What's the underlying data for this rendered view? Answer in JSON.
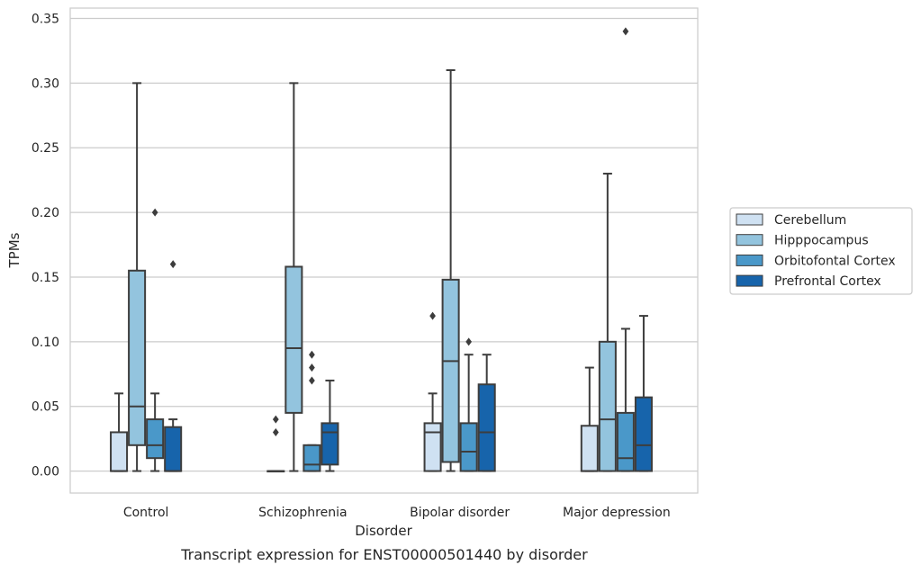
{
  "chart_data": {
    "type": "box",
    "title": "Transcript expression for ENST00000501440 by disorder",
    "xlabel": "Disorder",
    "ylabel": "TPMs",
    "ylim": [
      -0.017,
      0.358
    ],
    "yticks": [
      "0.00",
      "0.05",
      "0.10",
      "0.15",
      "0.20",
      "0.25",
      "0.30",
      "0.35"
    ],
    "categories": [
      "Control",
      "Schizophrenia",
      "Bipolar disorder",
      "Major depression"
    ],
    "legend_position": "right",
    "grid": true,
    "series": [
      {
        "name": "Cerebellum",
        "color": "#cfe1f2",
        "boxes": [
          {
            "whislo": 0.0,
            "q1": 0.0,
            "med": 0.0,
            "q3": 0.03,
            "whishi": 0.06,
            "fliers": []
          },
          {
            "whislo": 0.0,
            "q1": 0.0,
            "med": 0.0,
            "q3": 0.0,
            "whishi": 0.0,
            "fliers": [
              0.04,
              0.03
            ]
          },
          {
            "whislo": 0.0,
            "q1": 0.0,
            "med": 0.03,
            "q3": 0.037,
            "whishi": 0.06,
            "fliers": [
              0.12
            ]
          },
          {
            "whislo": 0.0,
            "q1": 0.0,
            "med": 0.0,
            "q3": 0.035,
            "whishi": 0.08,
            "fliers": []
          }
        ]
      },
      {
        "name": "Hipppocampus",
        "color": "#93c4de",
        "boxes": [
          {
            "whislo": 0.0,
            "q1": 0.02,
            "med": 0.05,
            "q3": 0.155,
            "whishi": 0.3,
            "fliers": []
          },
          {
            "whislo": 0.0,
            "q1": 0.045,
            "med": 0.095,
            "q3": 0.158,
            "whishi": 0.3,
            "fliers": []
          },
          {
            "whislo": 0.0,
            "q1": 0.007,
            "med": 0.085,
            "q3": 0.148,
            "whishi": 0.31,
            "fliers": []
          },
          {
            "whislo": 0.0,
            "q1": 0.0,
            "med": 0.04,
            "q3": 0.1,
            "whishi": 0.23,
            "fliers": []
          }
        ]
      },
      {
        "name": "Orbitofontal Cortex",
        "color": "#4a98c9",
        "boxes": [
          {
            "whislo": 0.0,
            "q1": 0.01,
            "med": 0.02,
            "q3": 0.04,
            "whishi": 0.06,
            "fliers": [
              0.2
            ]
          },
          {
            "whislo": 0.0,
            "q1": 0.0,
            "med": 0.005,
            "q3": 0.02,
            "whishi": 0.02,
            "fliers": [
              0.09,
              0.08,
              0.07
            ]
          },
          {
            "whislo": 0.0,
            "q1": 0.0,
            "med": 0.015,
            "q3": 0.037,
            "whishi": 0.09,
            "fliers": [
              0.1
            ]
          },
          {
            "whislo": 0.0,
            "q1": 0.0,
            "med": 0.01,
            "q3": 0.045,
            "whishi": 0.11,
            "fliers": [
              0.34
            ]
          }
        ]
      },
      {
        "name": "Prefrontal Cortex",
        "color": "#1764ab",
        "boxes": [
          {
            "whislo": 0.0,
            "q1": 0.0,
            "med": 0.0,
            "q3": 0.034,
            "whishi": 0.04,
            "fliers": [
              0.16
            ]
          },
          {
            "whislo": 0.0,
            "q1": 0.005,
            "med": 0.03,
            "q3": 0.037,
            "whishi": 0.07,
            "fliers": []
          },
          {
            "whislo": 0.0,
            "q1": 0.0,
            "med": 0.03,
            "q3": 0.067,
            "whishi": 0.09,
            "fliers": []
          },
          {
            "whislo": 0.0,
            "q1": 0.0,
            "med": 0.02,
            "q3": 0.057,
            "whishi": 0.12,
            "fliers": []
          }
        ]
      }
    ]
  }
}
